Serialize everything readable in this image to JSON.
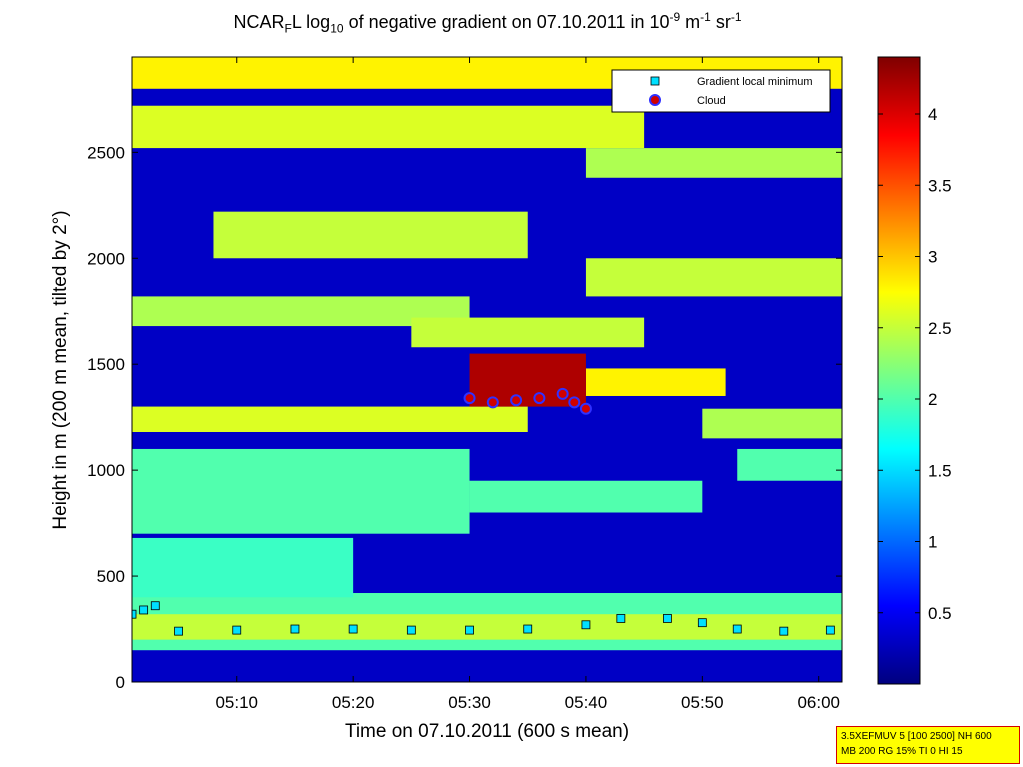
{
  "chart_data": {
    "type": "heatmap",
    "title": {
      "pre": "NCAR",
      "sub1": "F",
      "mid": "L log",
      "sub2": "10",
      "post": " of negative gradient on 07.10.2011 in 10",
      "sup1": "-9",
      "unit_m": " m",
      "sup2": "-1",
      "unit_sr": " sr",
      "sup3": "-1"
    },
    "xlabel": "Time on 07.10.2011 (600 s mean)",
    "ylabel": "Height in m (200 m mean, tilted by 2°)",
    "x_range_minutes": [
      301,
      362
    ],
    "x_ticks": [
      {
        "label": "05:10",
        "value": 310
      },
      {
        "label": "05:20",
        "value": 320
      },
      {
        "label": "05:30",
        "value": 330
      },
      {
        "label": "05:40",
        "value": 340
      },
      {
        "label": "05:50",
        "value": 350
      },
      {
        "label": "06:00",
        "value": 360
      }
    ],
    "ylim": [
      0,
      2950
    ],
    "y_ticks": [
      0,
      500,
      1000,
      1500,
      2000,
      2500
    ],
    "colorbar": {
      "range": [
        0,
        4.4
      ],
      "ticks": [
        0.5,
        1,
        1.5,
        2,
        2.5,
        3,
        3.5,
        4
      ],
      "tick_labels": [
        "0.5",
        "1",
        "1.5",
        "2",
        "2.5",
        "3",
        "3.5",
        "4"
      ],
      "colormap": "jet"
    },
    "background_value": 0.3,
    "layers": [
      {
        "t0": 301,
        "t1": 362,
        "h0": 150,
        "h1": 420,
        "value": 2.0
      },
      {
        "t0": 301,
        "t1": 362,
        "h0": 200,
        "h1": 320,
        "value": 2.5
      },
      {
        "t0": 301,
        "t1": 320,
        "h0": 400,
        "h1": 680,
        "value": 1.9
      },
      {
        "t0": 301,
        "t1": 330,
        "h0": 700,
        "h1": 1100,
        "value": 2.0
      },
      {
        "t0": 301,
        "t1": 335,
        "h0": 1180,
        "h1": 1300,
        "value": 2.6
      },
      {
        "t0": 301,
        "t1": 330,
        "h0": 1680,
        "h1": 1820,
        "value": 2.4
      },
      {
        "t0": 308,
        "t1": 335,
        "h0": 2000,
        "h1": 2220,
        "value": 2.5
      },
      {
        "t0": 301,
        "t1": 345,
        "h0": 2520,
        "h1": 2720,
        "value": 2.6
      },
      {
        "t0": 301,
        "t1": 362,
        "h0": 2800,
        "h1": 2950,
        "value": 2.8
      },
      {
        "t0": 340,
        "t1": 362,
        "h0": 2380,
        "h1": 2520,
        "value": 2.4
      },
      {
        "t0": 325,
        "t1": 345,
        "h0": 1580,
        "h1": 1720,
        "value": 2.5
      },
      {
        "t0": 340,
        "t1": 362,
        "h0": 1820,
        "h1": 2000,
        "value": 2.5
      },
      {
        "t0": 340,
        "t1": 352,
        "h0": 1350,
        "h1": 1480,
        "value": 2.8
      },
      {
        "t0": 350,
        "t1": 362,
        "h0": 1150,
        "h1": 1290,
        "value": 2.4
      },
      {
        "t0": 330,
        "t1": 350,
        "h0": 800,
        "h1": 950,
        "value": 2.0
      },
      {
        "t0": 330,
        "t1": 340,
        "h0": 1300,
        "h1": 1550,
        "value": 4.2
      },
      {
        "t0": 353,
        "t1": 362,
        "h0": 950,
        "h1": 1100,
        "value": 2.0
      }
    ],
    "series": [
      {
        "name": "Gradient local minimum",
        "marker": "square",
        "color": "#00e0ff",
        "points": [
          [
            301,
            320
          ],
          [
            302,
            340
          ],
          [
            303,
            360
          ],
          [
            305,
            240
          ],
          [
            310,
            245
          ],
          [
            315,
            250
          ],
          [
            320,
            250
          ],
          [
            325,
            245
          ],
          [
            330,
            245
          ],
          [
            335,
            250
          ],
          [
            340,
            270
          ],
          [
            343,
            300
          ],
          [
            347,
            300
          ],
          [
            350,
            280
          ],
          [
            353,
            250
          ],
          [
            357,
            240
          ],
          [
            361,
            245
          ]
        ]
      },
      {
        "name": "Cloud",
        "marker": "circle",
        "color": "#d00000",
        "points": [
          [
            330,
            1340
          ],
          [
            332,
            1320
          ],
          [
            334,
            1330
          ],
          [
            336,
            1340
          ],
          [
            338,
            1360
          ],
          [
            339,
            1320
          ],
          [
            340,
            1290
          ]
        ]
      }
    ],
    "legend_placement": "top-right",
    "info_box": [
      "3.5XEFMUV 5 [100 2500] NH 600",
      "MB 200 RG 15% TI 0 HI 15"
    ]
  }
}
